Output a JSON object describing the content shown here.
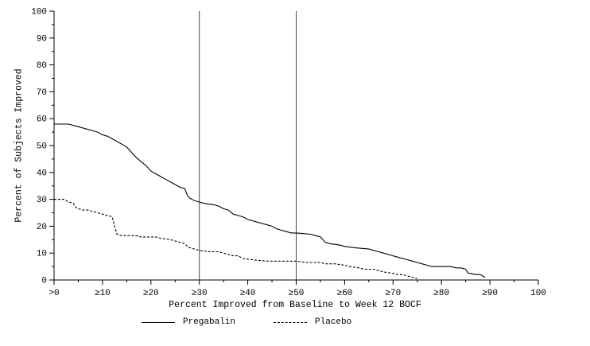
{
  "figure": {
    "background": "#ffffff",
    "axis_color": "#000000",
    "reference_line_color": "#444444"
  },
  "chart_data": {
    "type": "line",
    "title": "",
    "xlabel": "Percent Improved from Baseline to Week 12 BOCF",
    "ylabel": "Percent of Subjects Improved",
    "xlim": [
      0,
      100
    ],
    "ylim": [
      0,
      100
    ],
    "grid": false,
    "legend_position": "bottom",
    "x_ticks": [
      0,
      10,
      20,
      30,
      40,
      50,
      60,
      70,
      80,
      90,
      100
    ],
    "x_tick_labels": [
      ">0",
      "≥10",
      "≥20",
      "≥30",
      "≥40",
      "≥50",
      "≥60",
      "≥70",
      "≥80",
      "≥90",
      "100"
    ],
    "y_ticks": [
      0,
      10,
      20,
      30,
      40,
      50,
      60,
      70,
      80,
      90,
      100
    ],
    "y_tick_labels": [
      "0",
      "10",
      "20",
      "30",
      "40",
      "50",
      "60",
      "70",
      "80",
      "90",
      "100"
    ],
    "reference_lines_x": [
      30,
      50
    ],
    "series": [
      {
        "name": "Pregabalin",
        "line_style": "solid",
        "color": "#000000",
        "points": [
          [
            0,
            58
          ],
          [
            3,
            58
          ],
          [
            4,
            57.5
          ],
          [
            5,
            57
          ],
          [
            6,
            56.5
          ],
          [
            7,
            56
          ],
          [
            8,
            55.5
          ],
          [
            9,
            55
          ],
          [
            10,
            54
          ],
          [
            11,
            53.5
          ],
          [
            12,
            52.5
          ],
          [
            13,
            51.5
          ],
          [
            14,
            50.5
          ],
          [
            15,
            49.5
          ],
          [
            16,
            47.5
          ],
          [
            17,
            45.5
          ],
          [
            18,
            44
          ],
          [
            19,
            42.5
          ],
          [
            20,
            40.5
          ],
          [
            21,
            39.5
          ],
          [
            22,
            38.5
          ],
          [
            23,
            37.5
          ],
          [
            24,
            36.5
          ],
          [
            25,
            35.5
          ],
          [
            26,
            34.5
          ],
          [
            27,
            34
          ],
          [
            27.5,
            31.5
          ],
          [
            28,
            30.5
          ],
          [
            29,
            29.5
          ],
          [
            30,
            29
          ],
          [
            31,
            28.5
          ],
          [
            33,
            28
          ],
          [
            34,
            27.5
          ],
          [
            35,
            26.5
          ],
          [
            36,
            26
          ],
          [
            37,
            24.5
          ],
          [
            38,
            24
          ],
          [
            39,
            23.5
          ],
          [
            40,
            22.5
          ],
          [
            41,
            22
          ],
          [
            42,
            21.5
          ],
          [
            43,
            21
          ],
          [
            44,
            20.5
          ],
          [
            45,
            20
          ],
          [
            46,
            19
          ],
          [
            47,
            18.5
          ],
          [
            48,
            18
          ],
          [
            49,
            17.5
          ],
          [
            50,
            17.5
          ],
          [
            53,
            17
          ],
          [
            54,
            16.5
          ],
          [
            55,
            16
          ],
          [
            56,
            14
          ],
          [
            57,
            13.5
          ],
          [
            59,
            13
          ],
          [
            60,
            12.5
          ],
          [
            62,
            12
          ],
          [
            65,
            11.5
          ],
          [
            66,
            11
          ],
          [
            67,
            10.5
          ],
          [
            68,
            10
          ],
          [
            69,
            9.5
          ],
          [
            70,
            9
          ],
          [
            71,
            8.5
          ],
          [
            72,
            8
          ],
          [
            73,
            7.5
          ],
          [
            74,
            7
          ],
          [
            75,
            6.5
          ],
          [
            76,
            6
          ],
          [
            77,
            5.5
          ],
          [
            78,
            5
          ],
          [
            82,
            5
          ],
          [
            83,
            4.5
          ],
          [
            84,
            4.5
          ],
          [
            85,
            4
          ],
          [
            85.5,
            2.5
          ],
          [
            86,
            2.5
          ],
          [
            87,
            2
          ],
          [
            88,
            2
          ],
          [
            88.5,
            1.5
          ],
          [
            89,
            1
          ]
        ]
      },
      {
        "name": "Placebo",
        "line_style": "dashed",
        "color": "#000000",
        "points": [
          [
            0,
            30
          ],
          [
            2,
            30
          ],
          [
            3,
            29
          ],
          [
            4,
            28.5
          ],
          [
            4.5,
            27
          ],
          [
            5,
            26.5
          ],
          [
            6,
            26
          ],
          [
            7,
            26
          ],
          [
            8,
            25.5
          ],
          [
            9,
            25
          ],
          [
            10,
            24.5
          ],
          [
            11,
            24
          ],
          [
            12,
            23.5
          ],
          [
            12.5,
            20
          ],
          [
            13,
            17
          ],
          [
            14,
            16.5
          ],
          [
            17,
            16.5
          ],
          [
            18,
            16
          ],
          [
            21,
            16
          ],
          [
            22,
            15.5
          ],
          [
            24,
            15
          ],
          [
            25,
            14.5
          ],
          [
            26,
            14
          ],
          [
            27,
            13.5
          ],
          [
            27.5,
            12.5
          ],
          [
            28,
            12
          ],
          [
            29,
            11.5
          ],
          [
            30,
            11
          ],
          [
            32,
            10.5
          ],
          [
            34,
            10.5
          ],
          [
            35,
            10
          ],
          [
            36,
            9.5
          ],
          [
            37,
            9
          ],
          [
            38,
            9
          ],
          [
            39,
            8
          ],
          [
            41,
            7.5
          ],
          [
            44,
            7
          ],
          [
            50,
            7
          ],
          [
            52,
            6.5
          ],
          [
            55,
            6.5
          ],
          [
            56,
            6
          ],
          [
            58,
            6
          ],
          [
            60,
            5.5
          ],
          [
            61,
            5
          ],
          [
            63,
            4.5
          ],
          [
            64,
            4
          ],
          [
            66,
            4
          ],
          [
            67,
            3.5
          ],
          [
            68,
            3
          ],
          [
            70,
            2.5
          ],
          [
            71,
            2
          ],
          [
            72,
            2
          ],
          [
            73,
            1.5
          ],
          [
            74,
            1
          ],
          [
            75,
            0.5
          ]
        ]
      }
    ]
  }
}
